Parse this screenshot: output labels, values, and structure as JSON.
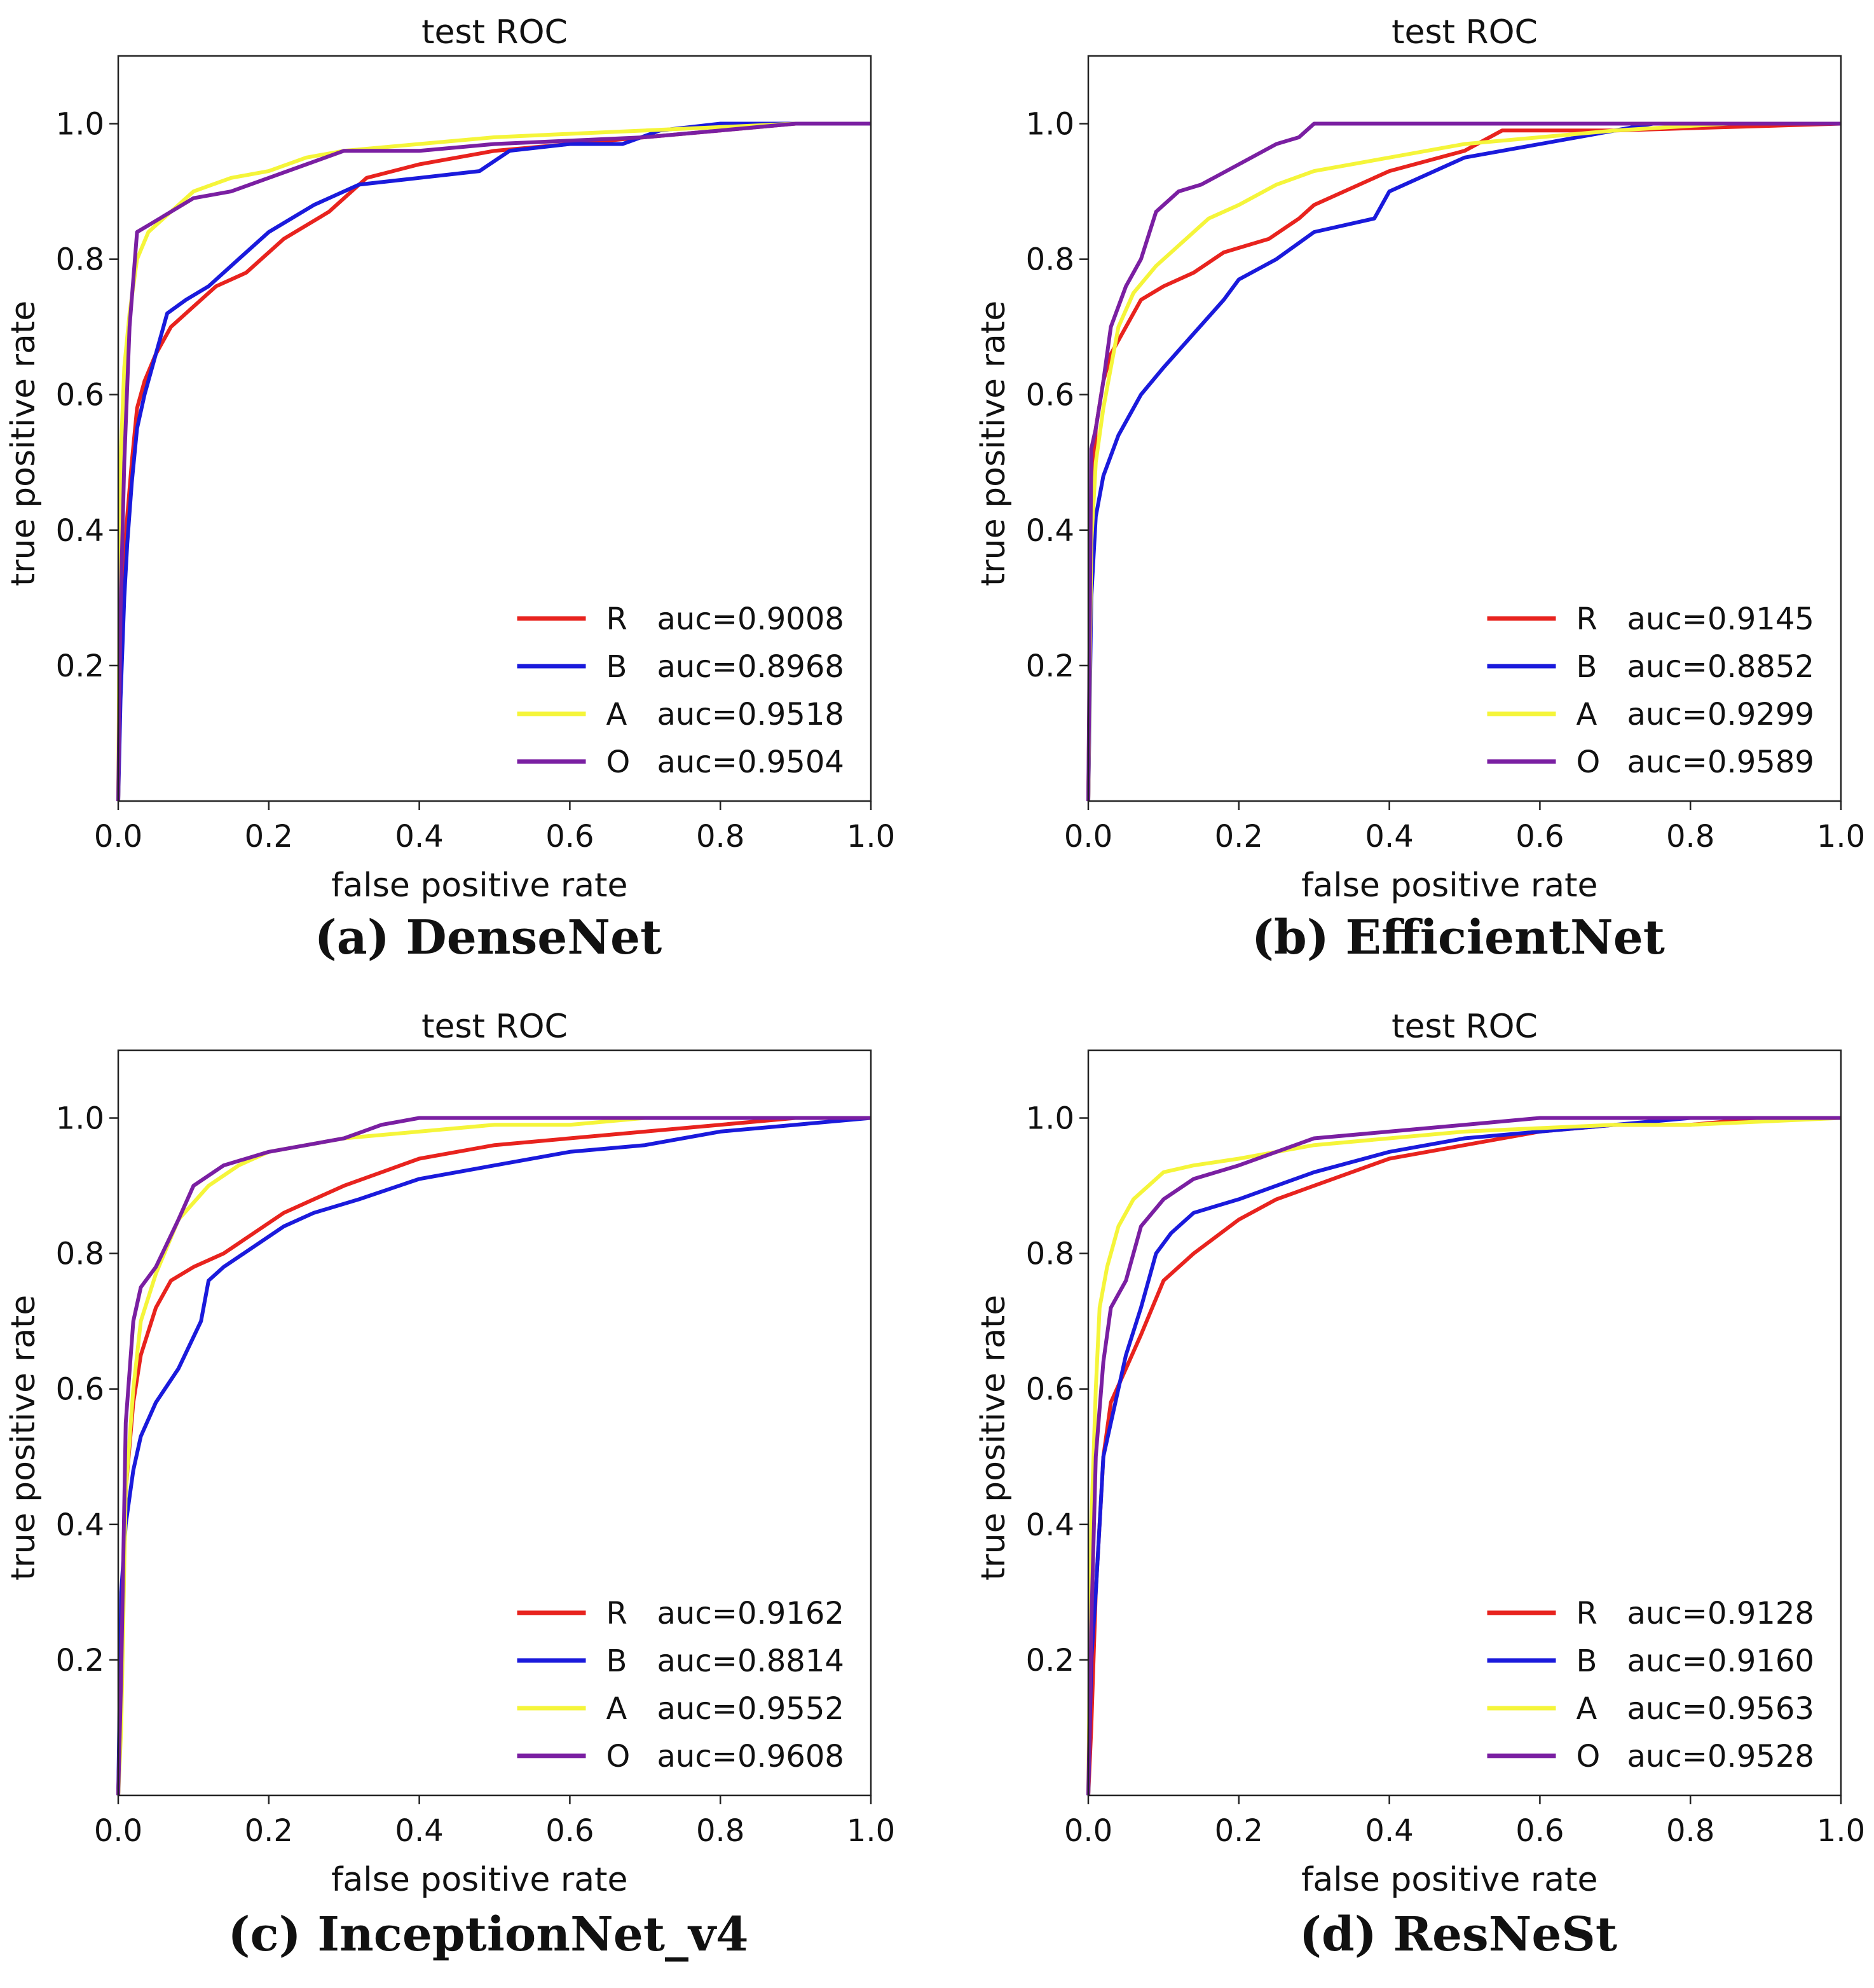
{
  "chart_data": [
    {
      "type": "line",
      "title": "test ROC",
      "xlabel": "false positive rate",
      "ylabel": "true positive rate",
      "xlim": [
        0,
        1
      ],
      "ylim": [
        0,
        1.1
      ],
      "xticks": [
        "0.0",
        "0.2",
        "0.4",
        "0.6",
        "0.8",
        "1.0"
      ],
      "yticks": [
        "0.2",
        "0.4",
        "0.6",
        "0.8",
        "1.0"
      ],
      "legend_position": "lower-right",
      "caption": "(a) DenseNet",
      "series": [
        {
          "name": "R",
          "auc": "auc=0.9008",
          "color": "#e8231e",
          "x": [
            0,
            0.003,
            0.008,
            0.012,
            0.018,
            0.025,
            0.035,
            0.05,
            0.07,
            0.1,
            0.13,
            0.17,
            0.22,
            0.28,
            0.33,
            0.4,
            0.5,
            0.6,
            0.7,
            0.8,
            0.9,
            1.0
          ],
          "y": [
            0,
            0.25,
            0.35,
            0.42,
            0.5,
            0.58,
            0.62,
            0.66,
            0.7,
            0.73,
            0.76,
            0.78,
            0.83,
            0.87,
            0.92,
            0.94,
            0.96,
            0.97,
            0.98,
            0.99,
            1.0,
            1.0
          ]
        },
        {
          "name": "B",
          "auc": "auc=0.8968",
          "color": "#1a1adc",
          "x": [
            0,
            0.003,
            0.008,
            0.012,
            0.018,
            0.025,
            0.035,
            0.05,
            0.065,
            0.09,
            0.12,
            0.16,
            0.2,
            0.26,
            0.32,
            0.4,
            0.48,
            0.52,
            0.6,
            0.67,
            0.72,
            0.8,
            0.9,
            1.0
          ],
          "y": [
            0,
            0.15,
            0.3,
            0.38,
            0.47,
            0.55,
            0.6,
            0.66,
            0.72,
            0.74,
            0.76,
            0.8,
            0.84,
            0.88,
            0.91,
            0.92,
            0.93,
            0.96,
            0.97,
            0.97,
            0.99,
            1.0,
            1.0,
            1.0
          ]
        },
        {
          "name": "A",
          "auc": "auc=0.9518",
          "color": "#f5f53a",
          "x": [
            0,
            0.003,
            0.008,
            0.015,
            0.025,
            0.04,
            0.06,
            0.1,
            0.15,
            0.2,
            0.25,
            0.3,
            0.4,
            0.5,
            0.6,
            0.7,
            0.8,
            0.9,
            1.0
          ],
          "y": [
            0,
            0.5,
            0.64,
            0.72,
            0.8,
            0.84,
            0.86,
            0.9,
            0.92,
            0.93,
            0.95,
            0.96,
            0.97,
            0.98,
            0.985,
            0.99,
            0.995,
            1.0,
            1.0
          ]
        },
        {
          "name": "O",
          "auc": "auc=0.9504",
          "color": "#7a1fa2",
          "x": [
            0,
            0.003,
            0.008,
            0.015,
            0.025,
            0.04,
            0.07,
            0.1,
            0.15,
            0.2,
            0.25,
            0.3,
            0.4,
            0.5,
            0.6,
            0.7,
            0.8,
            0.9,
            1.0
          ],
          "y": [
            0,
            0.28,
            0.5,
            0.7,
            0.84,
            0.85,
            0.87,
            0.89,
            0.9,
            0.92,
            0.94,
            0.96,
            0.96,
            0.97,
            0.975,
            0.98,
            0.99,
            1.0,
            1.0
          ]
        }
      ],
      "legend": [
        {
          "letter": "R",
          "auc": "auc=0.9008"
        },
        {
          "letter": "B",
          "auc": "auc=0.8968"
        },
        {
          "letter": "A",
          "auc": "auc=0.9518"
        },
        {
          "letter": "O",
          "auc": "auc=0.9504"
        }
      ]
    },
    {
      "type": "line",
      "title": "test ROC",
      "xlabel": "false positive rate",
      "ylabel": "true positive rate",
      "xlim": [
        0,
        1
      ],
      "ylim": [
        0,
        1.1
      ],
      "xticks": [
        "0.0",
        "0.2",
        "0.4",
        "0.6",
        "0.8",
        "1.0"
      ],
      "yticks": [
        "0.2",
        "0.4",
        "0.6",
        "0.8",
        "1.0"
      ],
      "legend_position": "lower-right",
      "caption": "(b) EfficientNet",
      "series": [
        {
          "name": "R",
          "auc": "auc=0.9145",
          "color": "#e8231e",
          "x": [
            0,
            0.004,
            0.01,
            0.02,
            0.03,
            0.05,
            0.07,
            0.1,
            0.14,
            0.18,
            0.24,
            0.28,
            0.3,
            0.4,
            0.5,
            0.55,
            0.7,
            0.85,
            1.0
          ],
          "y": [
            0,
            0.4,
            0.55,
            0.62,
            0.66,
            0.7,
            0.74,
            0.76,
            0.78,
            0.81,
            0.83,
            0.86,
            0.88,
            0.93,
            0.96,
            0.99,
            0.99,
            0.995,
            1.0
          ]
        },
        {
          "name": "B",
          "auc": "auc=0.8852",
          "color": "#1a1adc",
          "x": [
            0,
            0.004,
            0.01,
            0.02,
            0.04,
            0.07,
            0.1,
            0.14,
            0.18,
            0.2,
            0.25,
            0.3,
            0.38,
            0.4,
            0.5,
            0.55,
            0.65,
            0.75,
            1.0
          ],
          "y": [
            0,
            0.3,
            0.42,
            0.48,
            0.54,
            0.6,
            0.64,
            0.69,
            0.74,
            0.77,
            0.8,
            0.84,
            0.86,
            0.9,
            0.95,
            0.96,
            0.98,
            1.0,
            1.0
          ]
        },
        {
          "name": "A",
          "auc": "auc=0.9299",
          "color": "#f5f53a",
          "x": [
            0,
            0.004,
            0.01,
            0.02,
            0.04,
            0.06,
            0.09,
            0.12,
            0.16,
            0.2,
            0.25,
            0.3,
            0.4,
            0.5,
            0.6,
            0.7,
            0.85,
            1.0
          ],
          "y": [
            0,
            0.38,
            0.5,
            0.58,
            0.7,
            0.75,
            0.79,
            0.82,
            0.86,
            0.88,
            0.91,
            0.93,
            0.95,
            0.97,
            0.98,
            0.99,
            1.0,
            1.0
          ]
        },
        {
          "name": "O",
          "auc": "auc=0.9589",
          "color": "#7a1fa2",
          "x": [
            0,
            0.004,
            0.01,
            0.02,
            0.03,
            0.05,
            0.07,
            0.09,
            0.12,
            0.15,
            0.2,
            0.25,
            0.28,
            0.3,
            0.4,
            0.6,
            0.8,
            1.0
          ],
          "y": [
            0,
            0.52,
            0.55,
            0.62,
            0.7,
            0.76,
            0.8,
            0.87,
            0.9,
            0.91,
            0.94,
            0.97,
            0.98,
            1.0,
            1.0,
            1.0,
            1.0,
            1.0
          ]
        }
      ],
      "legend": [
        {
          "letter": "R",
          "auc": "auc=0.9145"
        },
        {
          "letter": "B",
          "auc": "auc=0.8852"
        },
        {
          "letter": "A",
          "auc": "auc=0.9299"
        },
        {
          "letter": "O",
          "auc": "auc=0.9589"
        }
      ]
    },
    {
      "type": "line",
      "title": "test ROC",
      "xlabel": "false positive rate",
      "ylabel": "true positive rate",
      "xlim": [
        0,
        1
      ],
      "ylim": [
        0,
        1.1
      ],
      "xticks": [
        "0.0",
        "0.2",
        "0.4",
        "0.6",
        "0.8",
        "1.0"
      ],
      "yticks": [
        "0.2",
        "0.4",
        "0.6",
        "0.8",
        "1.0"
      ],
      "legend_position": "lower-right",
      "caption": "(c) InceptionNet_v4",
      "series": [
        {
          "name": "R",
          "auc": "auc=0.9162",
          "color": "#e8231e",
          "x": [
            0,
            0.004,
            0.01,
            0.02,
            0.03,
            0.05,
            0.07,
            0.1,
            0.14,
            0.18,
            0.22,
            0.26,
            0.3,
            0.35,
            0.4,
            0.45,
            0.5,
            0.6,
            0.7,
            0.8,
            0.9,
            1.0
          ],
          "y": [
            0,
            0.2,
            0.45,
            0.58,
            0.65,
            0.72,
            0.76,
            0.78,
            0.8,
            0.83,
            0.86,
            0.88,
            0.9,
            0.92,
            0.94,
            0.95,
            0.96,
            0.97,
            0.98,
            0.99,
            1.0,
            1.0
          ]
        },
        {
          "name": "B",
          "auc": "auc=0.8814",
          "color": "#1a1adc",
          "x": [
            0,
            0.004,
            0.01,
            0.02,
            0.03,
            0.05,
            0.08,
            0.11,
            0.12,
            0.14,
            0.18,
            0.22,
            0.26,
            0.32,
            0.4,
            0.5,
            0.6,
            0.7,
            0.8,
            0.9,
            1.0
          ],
          "y": [
            0,
            0.3,
            0.4,
            0.48,
            0.53,
            0.58,
            0.63,
            0.7,
            0.76,
            0.78,
            0.81,
            0.84,
            0.86,
            0.88,
            0.91,
            0.93,
            0.95,
            0.96,
            0.98,
            0.99,
            1.0
          ]
        },
        {
          "name": "A",
          "auc": "auc=0.9552",
          "color": "#f5f53a",
          "x": [
            0,
            0.004,
            0.01,
            0.02,
            0.03,
            0.05,
            0.08,
            0.12,
            0.16,
            0.2,
            0.25,
            0.3,
            0.4,
            0.5,
            0.6,
            0.7,
            0.8,
            0.9,
            1.0
          ],
          "y": [
            0,
            0.1,
            0.45,
            0.6,
            0.7,
            0.77,
            0.85,
            0.9,
            0.93,
            0.95,
            0.96,
            0.97,
            0.98,
            0.99,
            0.99,
            1.0,
            1.0,
            1.0,
            1.0
          ]
        },
        {
          "name": "O",
          "auc": "auc=0.9608",
          "color": "#7a1fa2",
          "x": [
            0,
            0.004,
            0.01,
            0.02,
            0.03,
            0.05,
            0.08,
            0.1,
            0.14,
            0.2,
            0.3,
            0.35,
            0.4,
            0.5,
            0.6,
            0.8,
            1.0
          ],
          "y": [
            0,
            0.18,
            0.55,
            0.7,
            0.75,
            0.78,
            0.85,
            0.9,
            0.93,
            0.95,
            0.97,
            0.99,
            1.0,
            1.0,
            1.0,
            1.0,
            1.0
          ]
        }
      ],
      "legend": [
        {
          "letter": "R",
          "auc": "auc=0.9162"
        },
        {
          "letter": "B",
          "auc": "auc=0.8814"
        },
        {
          "letter": "A",
          "auc": "auc=0.9552"
        },
        {
          "letter": "O",
          "auc": "auc=0.9608"
        }
      ]
    },
    {
      "type": "line",
      "title": "test ROC",
      "xlabel": "false positive rate",
      "ylabel": "true positive rate",
      "xlim": [
        0,
        1
      ],
      "ylim": [
        0,
        1.1
      ],
      "xticks": [
        "0.0",
        "0.2",
        "0.4",
        "0.6",
        "0.8",
        "1.0"
      ],
      "yticks": [
        "0.2",
        "0.4",
        "0.6",
        "0.8",
        "1.0"
      ],
      "legend_position": "lower-right",
      "caption": "(d) ResNeSt",
      "series": [
        {
          "name": "R",
          "auc": "auc=0.9128",
          "color": "#e8231e",
          "x": [
            0,
            0.004,
            0.01,
            0.015,
            0.02,
            0.03,
            0.05,
            0.07,
            0.1,
            0.14,
            0.2,
            0.25,
            0.3,
            0.4,
            0.5,
            0.6,
            0.7,
            0.8,
            0.9,
            1.0
          ],
          "y": [
            0,
            0.1,
            0.3,
            0.4,
            0.5,
            0.58,
            0.63,
            0.68,
            0.76,
            0.8,
            0.85,
            0.88,
            0.9,
            0.94,
            0.96,
            0.98,
            0.99,
            0.99,
            1.0,
            1.0
          ]
        },
        {
          "name": "B",
          "auc": "auc=0.9160",
          "color": "#1a1adc",
          "x": [
            0,
            0.004,
            0.01,
            0.015,
            0.02,
            0.03,
            0.05,
            0.07,
            0.09,
            0.11,
            0.14,
            0.2,
            0.25,
            0.3,
            0.4,
            0.5,
            0.6,
            0.7,
            0.8,
            1.0
          ],
          "y": [
            0,
            0.2,
            0.3,
            0.4,
            0.5,
            0.55,
            0.65,
            0.72,
            0.8,
            0.83,
            0.86,
            0.88,
            0.9,
            0.92,
            0.95,
            0.97,
            0.98,
            0.99,
            1.0,
            1.0
          ]
        },
        {
          "name": "A",
          "auc": "auc=0.9563",
          "color": "#f5f53a",
          "x": [
            0,
            0.004,
            0.01,
            0.015,
            0.025,
            0.04,
            0.06,
            0.08,
            0.1,
            0.14,
            0.2,
            0.3,
            0.4,
            0.5,
            0.6,
            0.7,
            0.8,
            0.9,
            1.0
          ],
          "y": [
            0,
            0.4,
            0.6,
            0.72,
            0.78,
            0.84,
            0.88,
            0.9,
            0.92,
            0.93,
            0.94,
            0.96,
            0.97,
            0.98,
            0.985,
            0.99,
            0.99,
            0.995,
            1.0
          ]
        },
        {
          "name": "O",
          "auc": "auc=0.9528",
          "color": "#7a1fa2",
          "x": [
            0,
            0.004,
            0.01,
            0.02,
            0.03,
            0.05,
            0.07,
            0.1,
            0.14,
            0.2,
            0.25,
            0.3,
            0.4,
            0.5,
            0.6,
            0.8,
            1.0
          ],
          "y": [
            0,
            0.25,
            0.5,
            0.64,
            0.72,
            0.76,
            0.84,
            0.88,
            0.91,
            0.93,
            0.95,
            0.97,
            0.98,
            0.99,
            1.0,
            1.0,
            1.0
          ]
        }
      ],
      "legend": [
        {
          "letter": "R",
          "auc": "auc=0.9128"
        },
        {
          "letter": "B",
          "auc": "auc=0.9160"
        },
        {
          "letter": "A",
          "auc": "auc=0.9563"
        },
        {
          "letter": "O",
          "auc": "auc=0.9528"
        }
      ]
    }
  ]
}
